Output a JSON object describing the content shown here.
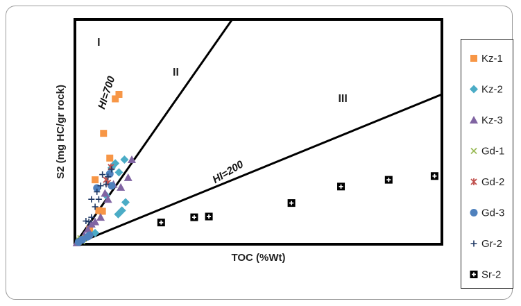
{
  "chart_data": {
    "type": "scatter",
    "title": "",
    "xlabel": "TOC (%Wt)",
    "ylabel": "S2 (mg HC/gr rock)",
    "xlim": [
      0,
      10
    ],
    "ylim": [
      0,
      30
    ],
    "grid": false,
    "legend_position": "right",
    "region_labels": [
      {
        "text": "I",
        "x": 0.65,
        "y": 26.5
      },
      {
        "text": "II",
        "x": 2.75,
        "y": 22.5
      },
      {
        "text": "III",
        "x": 7.3,
        "y": 19.0
      }
    ],
    "reference_lines": [
      {
        "label": "HI=700",
        "hi": 700
      },
      {
        "label": "HI=200",
        "hi": 200
      }
    ],
    "series": [
      {
        "name": "Kz-1",
        "marker": "square",
        "color": "#F79646",
        "points": [
          [
            0.75,
            4.4
          ],
          [
            0.95,
            11.5
          ],
          [
            1.1,
            19.4
          ],
          [
            1.2,
            20.0
          ],
          [
            0.78,
            14.8
          ],
          [
            0.55,
            8.6
          ],
          [
            0.65,
            4.5
          ],
          [
            0.4,
            2.0
          ]
        ]
      },
      {
        "name": "Kz-2",
        "marker": "diamond",
        "color": "#4BACC6",
        "points": [
          [
            1.0,
            10.2
          ],
          [
            1.1,
            10.8
          ],
          [
            1.2,
            9.6
          ],
          [
            1.35,
            11.3
          ],
          [
            1.28,
            4.5
          ],
          [
            1.18,
            4.0
          ],
          [
            1.38,
            5.6
          ],
          [
            0.85,
            6.5
          ],
          [
            0.55,
            1.5
          ],
          [
            0.35,
            1.0
          ]
        ]
      },
      {
        "name": "Kz-3",
        "marker": "triangle",
        "color": "#8064A2",
        "points": [
          [
            1.55,
            11.3
          ],
          [
            1.45,
            8.9
          ],
          [
            1.25,
            7.6
          ],
          [
            1.05,
            8.0
          ],
          [
            0.9,
            6.0
          ],
          [
            0.82,
            6.8
          ],
          [
            0.7,
            3.6
          ],
          [
            0.55,
            3.0
          ],
          [
            0.45,
            2.7
          ],
          [
            0.35,
            2.0
          ],
          [
            0.25,
            1.2
          ],
          [
            0.15,
            0.6
          ],
          [
            0.05,
            0.2
          ]
        ]
      },
      {
        "name": "Gd-1",
        "marker": "x",
        "color": "#9BBB59",
        "points": [
          [
            0.12,
            0.5
          ],
          [
            0.18,
            0.6
          ],
          [
            0.24,
            0.7
          ],
          [
            0.1,
            0.3
          ],
          [
            0.2,
            0.4
          ],
          [
            0.15,
            0.8
          ]
        ]
      },
      {
        "name": "Gd-2",
        "marker": "star",
        "color": "#C0504D",
        "points": [
          [
            0.98,
            10.3
          ],
          [
            0.9,
            8.2
          ],
          [
            0.85,
            8.6
          ]
        ]
      },
      {
        "name": "Gd-3",
        "marker": "circle",
        "color": "#4F81BD",
        "points": [
          [
            0.95,
            9.4
          ],
          [
            0.6,
            7.5
          ],
          [
            1.0,
            7.8
          ],
          [
            0.4,
            1.2
          ],
          [
            0.35,
            1.0
          ],
          [
            0.2,
            0.6
          ],
          [
            0.1,
            0.3
          ]
        ]
      },
      {
        "name": "Gr-2",
        "marker": "plus",
        "color": "#1F3864",
        "points": [
          [
            1.0,
            10.0
          ],
          [
            0.75,
            9.3
          ],
          [
            0.9,
            9.0
          ],
          [
            0.7,
            7.8
          ],
          [
            0.45,
            6.0
          ],
          [
            0.65,
            6.0
          ],
          [
            0.55,
            5.0
          ],
          [
            0.3,
            3.1
          ],
          [
            0.45,
            3.6
          ],
          [
            0.38,
            3.0
          ],
          [
            0.85,
            8.0
          ],
          [
            0.6,
            7.0
          ]
        ]
      },
      {
        "name": "Sr-2",
        "marker": "boxplus",
        "color": "#000000",
        "points": [
          [
            2.35,
            2.9
          ],
          [
            3.25,
            3.6
          ],
          [
            3.65,
            3.7
          ],
          [
            5.9,
            5.5
          ],
          [
            7.25,
            7.7
          ],
          [
            8.55,
            8.6
          ],
          [
            9.8,
            9.1
          ]
        ]
      }
    ]
  }
}
